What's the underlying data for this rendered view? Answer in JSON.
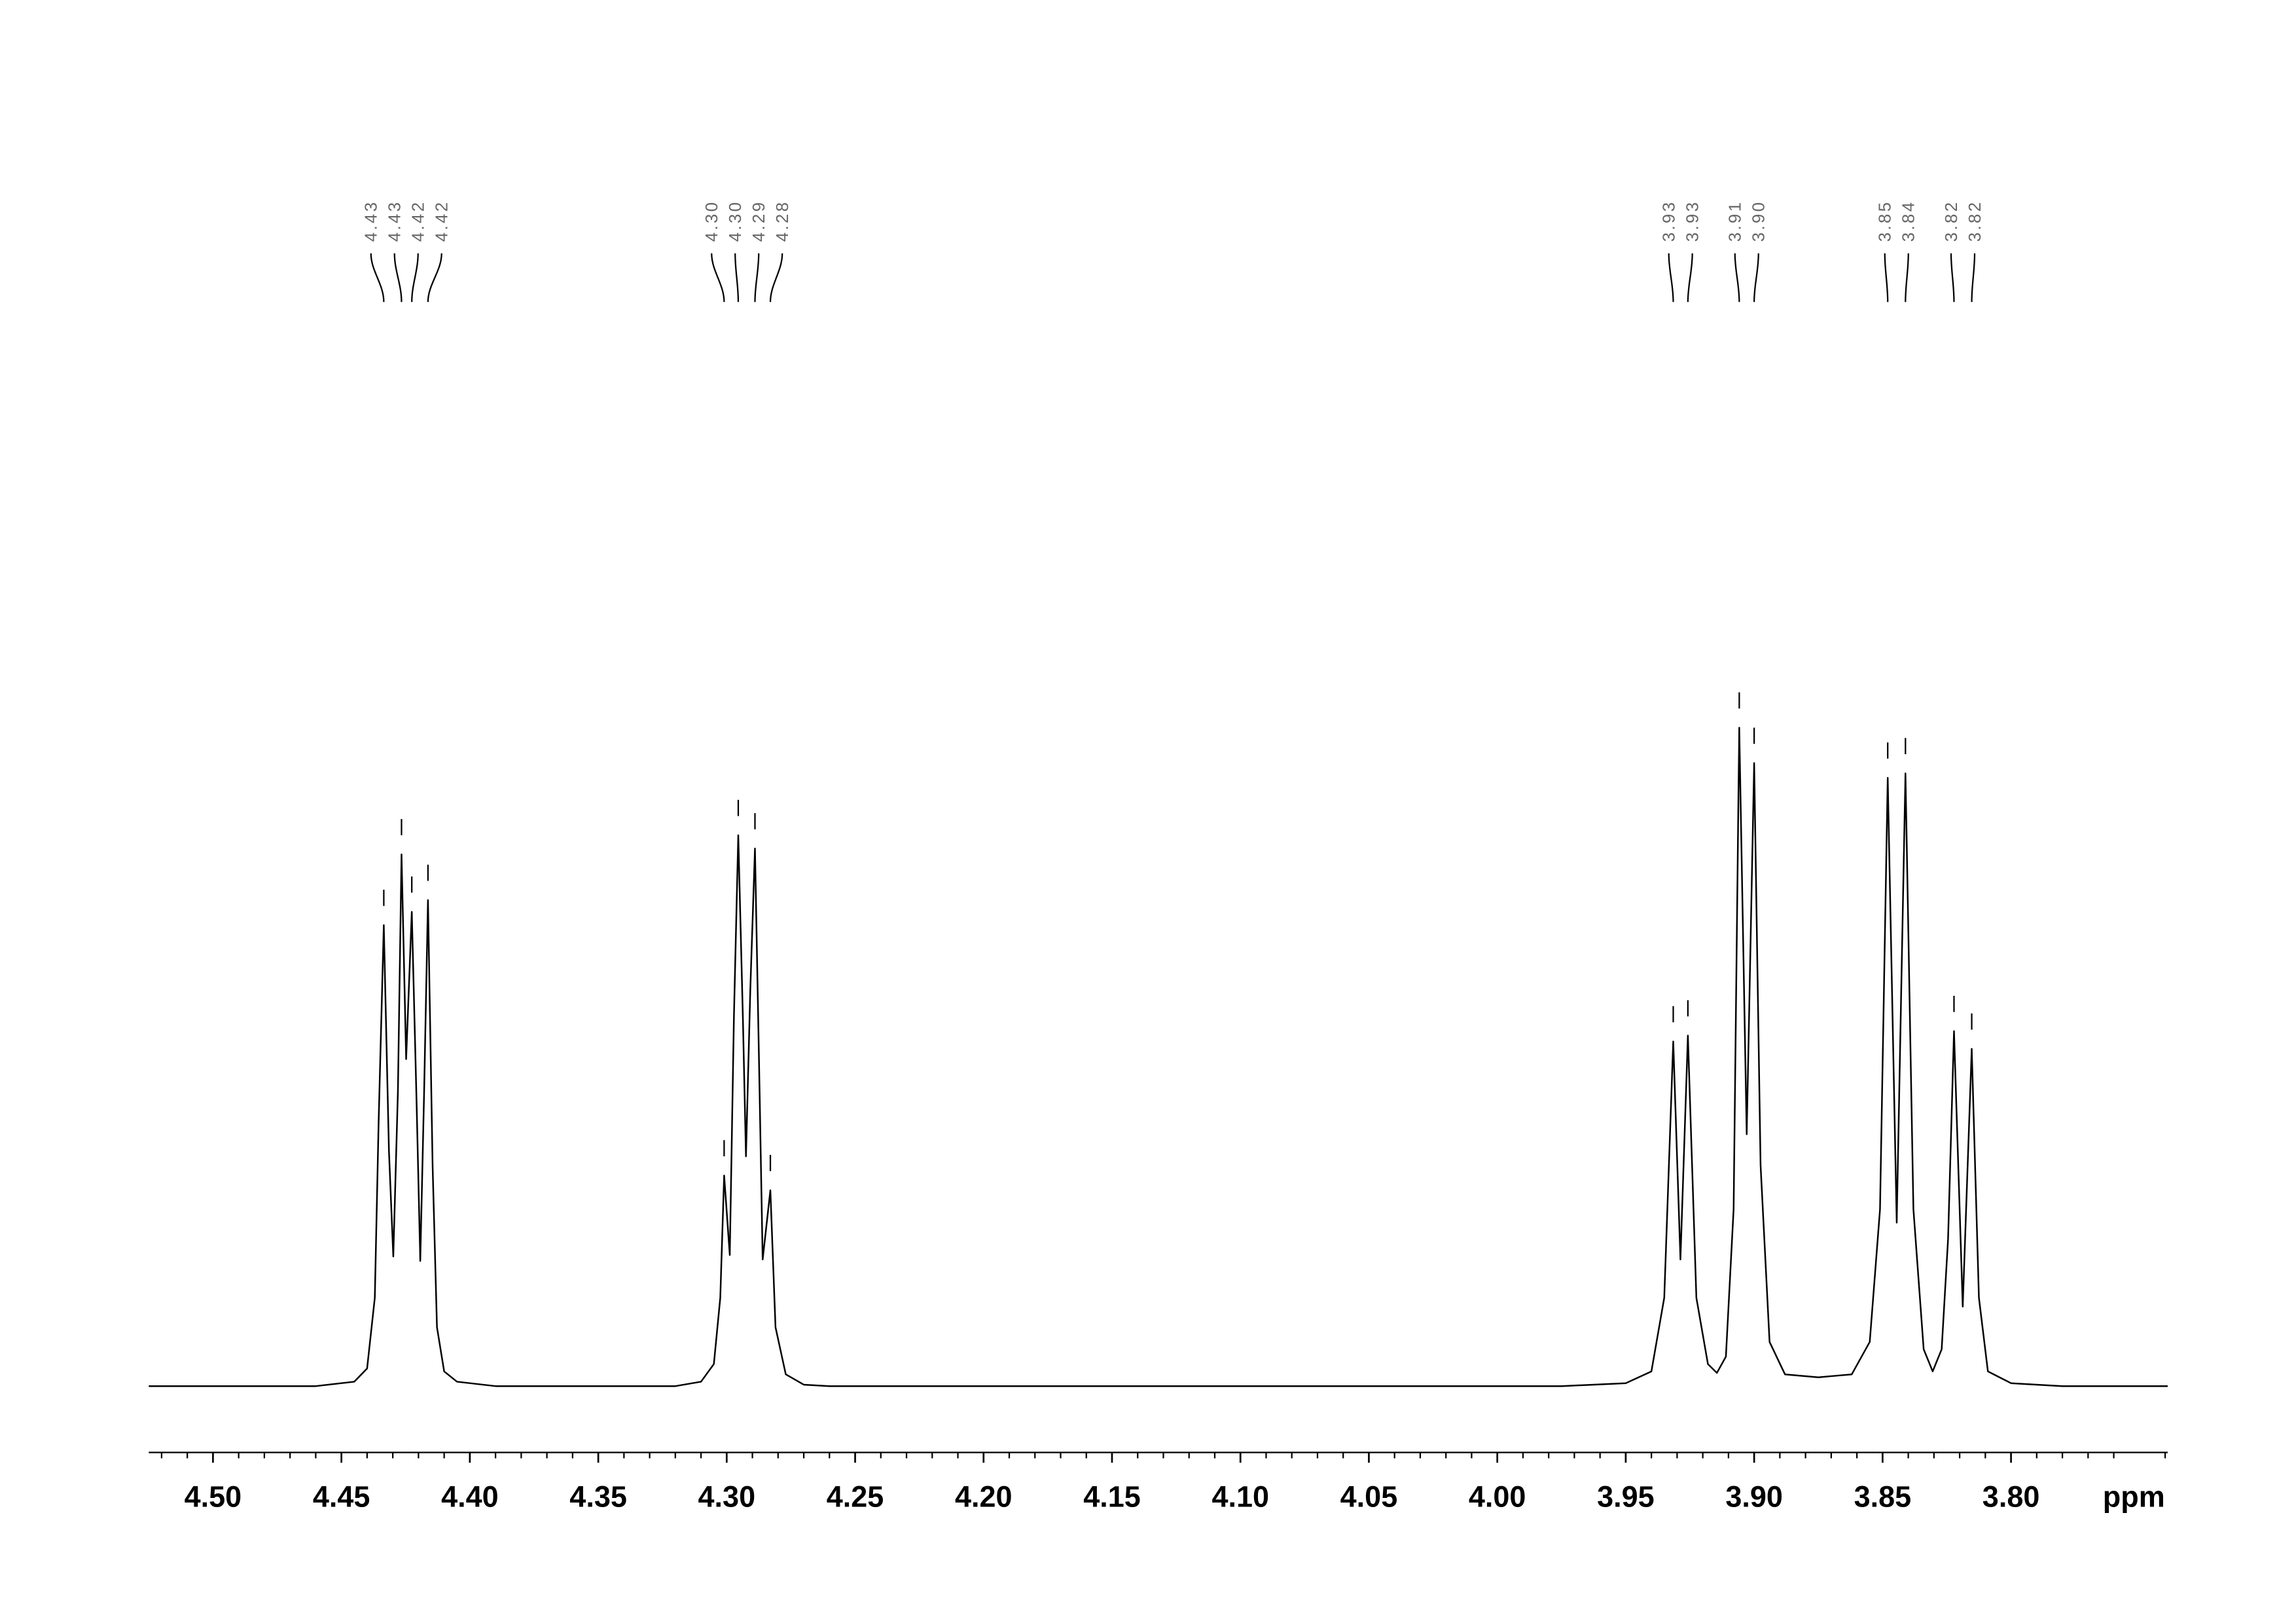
{
  "chart_data": {
    "type": "line",
    "color": "#000000",
    "xlabel": "ppm",
    "xlim": [
      4.525,
      3.739
    ],
    "xticks": [
      {
        "value": 4.5,
        "label": "4.50"
      },
      {
        "value": 4.45,
        "label": "4.45"
      },
      {
        "value": 4.4,
        "label": "4.40"
      },
      {
        "value": 4.35,
        "label": "4.35"
      },
      {
        "value": 4.3,
        "label": "4.30"
      },
      {
        "value": 4.25,
        "label": "4.25"
      },
      {
        "value": 4.2,
        "label": "4.20"
      },
      {
        "value": 4.15,
        "label": "4.15"
      },
      {
        "value": 4.1,
        "label": "4.10"
      },
      {
        "value": 4.05,
        "label": "4.05"
      },
      {
        "value": 4.0,
        "label": "4.00"
      },
      {
        "value": 3.95,
        "label": "3.95"
      },
      {
        "value": 3.9,
        "label": "3.90"
      },
      {
        "value": 3.85,
        "label": "3.85"
      },
      {
        "value": 3.8,
        "label": "3.80"
      }
    ],
    "xminorticks": [
      4.52,
      4.51,
      4.49,
      4.48,
      4.47,
      4.46,
      4.44,
      4.43,
      4.42,
      4.41,
      4.39,
      4.38,
      4.37,
      4.36,
      4.34,
      4.33,
      4.32,
      4.31,
      4.29,
      4.28,
      4.27,
      4.26,
      4.24,
      4.23,
      4.22,
      4.21,
      4.19,
      4.18,
      4.17,
      4.16,
      4.14,
      4.13,
      4.12,
      4.11,
      4.09,
      4.08,
      4.07,
      4.06,
      4.04,
      4.03,
      4.02,
      4.01,
      3.99,
      3.98,
      3.97,
      3.96,
      3.94,
      3.93,
      3.92,
      3.91,
      3.89,
      3.88,
      3.87,
      3.86,
      3.84,
      3.83,
      3.82,
      3.81,
      3.79,
      3.78,
      3.77,
      3.76,
      3.74
    ],
    "peaks": [
      {
        "value": 4.4335,
        "label": "4.43"
      },
      {
        "value": 4.4266,
        "label": "4.43"
      },
      {
        "value": 4.4226,
        "label": "4.42"
      },
      {
        "value": 4.4163,
        "label": "4.42"
      },
      {
        "value": 4.301,
        "label": "4.30"
      },
      {
        "value": 4.2955,
        "label": "4.30"
      },
      {
        "value": 4.289,
        "label": "4.29"
      },
      {
        "value": 4.283,
        "label": "4.28"
      },
      {
        "value": 3.9315,
        "label": "3.93"
      },
      {
        "value": 3.9258,
        "label": "3.93"
      },
      {
        "value": 3.9058,
        "label": "3.91"
      },
      {
        "value": 3.9,
        "label": "3.90"
      },
      {
        "value": 3.848,
        "label": "3.85"
      },
      {
        "value": 3.8411,
        "label": "3.84"
      },
      {
        "value": 3.8222,
        "label": "3.82"
      },
      {
        "value": 3.8153,
        "label": "3.82"
      }
    ],
    "x": [
      4.525,
      4.46,
      4.445,
      4.44,
      4.437,
      4.4355,
      4.4335,
      4.4315,
      4.4298,
      4.428,
      4.4266,
      4.4248,
      4.4226,
      4.4207,
      4.4193,
      4.4178,
      4.4163,
      4.4145,
      4.4128,
      4.41,
      4.405,
      4.39,
      4.32,
      4.31,
      4.305,
      4.3025,
      4.301,
      4.2988,
      4.2972,
      4.2955,
      4.2937,
      4.2925,
      4.2908,
      4.289,
      4.2872,
      4.286,
      4.283,
      4.281,
      4.277,
      4.27,
      4.26,
      3.975,
      3.95,
      3.94,
      3.935,
      3.9315,
      3.9287,
      3.9258,
      3.9225,
      3.918,
      3.9145,
      3.911,
      3.908,
      3.9058,
      3.9029,
      3.9,
      3.8975,
      3.894,
      3.888,
      3.875,
      3.862,
      3.855,
      3.851,
      3.848,
      3.8445,
      3.8411,
      3.838,
      3.834,
      3.8305,
      3.827,
      3.8245,
      3.8222,
      3.8188,
      3.8153,
      3.8125,
      3.809,
      3.8,
      3.78,
      3.739
    ],
    "values": [
      0,
      0,
      3,
      12,
      60,
      180,
      313,
      160,
      88,
      200,
      361,
      222,
      322,
      190,
      85,
      200,
      330,
      150,
      40,
      10,
      3,
      0,
      0,
      3,
      15,
      60,
      143,
      89,
      250,
      374,
      250,
      156,
      270,
      365,
      200,
      86,
      133,
      40,
      8,
      1,
      0,
      0,
      2,
      10,
      60,
      234,
      86,
      238,
      60,
      15,
      9,
      20,
      120,
      447,
      171,
      423,
      150,
      30,
      8,
      6,
      8,
      30,
      120,
      413,
      111,
      416,
      120,
      25,
      10,
      25,
      100,
      241,
      54,
      229,
      60,
      10,
      2,
      0,
      0
    ]
  }
}
